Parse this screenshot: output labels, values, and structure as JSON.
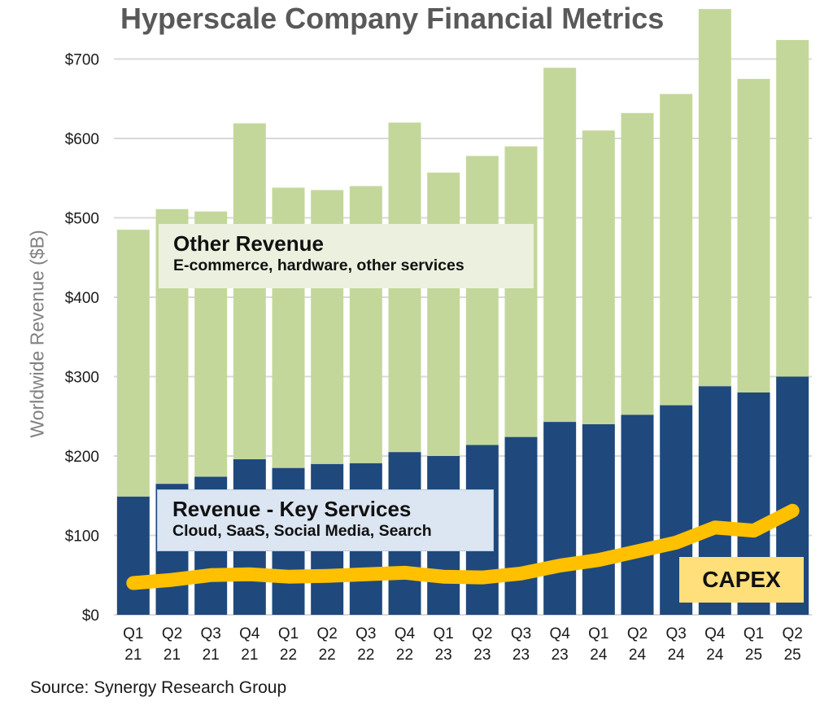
{
  "chart_data": {
    "type": "bar",
    "stacked": true,
    "title": "Hyperscale Company Financial Metrics",
    "xlabel": "",
    "ylabel": "Worldwide Revenue ($B)",
    "ylim": [
      0,
      700
    ],
    "yticks": [
      "$0",
      "$100",
      "$200",
      "$300",
      "$400",
      "$500",
      "$600",
      "$700"
    ],
    "ytick_values": [
      0,
      100,
      200,
      300,
      400,
      500,
      600,
      700
    ],
    "grid": true,
    "categories": [
      [
        "Q1",
        "21"
      ],
      [
        "Q2",
        "21"
      ],
      [
        "Q3",
        "21"
      ],
      [
        "Q4",
        "21"
      ],
      [
        "Q1",
        "22"
      ],
      [
        "Q2",
        "22"
      ],
      [
        "Q3",
        "22"
      ],
      [
        "Q4",
        "22"
      ],
      [
        "Q1",
        "23"
      ],
      [
        "Q2",
        "23"
      ],
      [
        "Q3",
        "23"
      ],
      [
        "Q4",
        "23"
      ],
      [
        "Q1",
        "24"
      ],
      [
        "Q2",
        "24"
      ],
      [
        "Q3",
        "24"
      ],
      [
        "Q4",
        "24"
      ],
      [
        "Q1",
        "25"
      ],
      [
        "Q2",
        "25"
      ]
    ],
    "series": [
      {
        "name": "Revenue - Key Services",
        "kind": "bar",
        "color": "#1F497D",
        "values": [
          149,
          165,
          174,
          196,
          185,
          190,
          191,
          205,
          200,
          214,
          224,
          243,
          240,
          252,
          264,
          288,
          280,
          300
        ]
      },
      {
        "name": "Other Revenue",
        "kind": "bar",
        "color": "#C4D79B",
        "values": [
          336,
          346,
          334,
          423,
          353,
          345,
          349,
          415,
          357,
          364,
          366,
          446,
          370,
          380,
          392,
          475,
          395,
          424
        ]
      },
      {
        "name": "CAPEX",
        "kind": "line",
        "color": "#FFC000",
        "values": [
          40,
          44,
          50,
          51,
          48,
          49,
          51,
          53,
          48,
          47,
          52,
          62,
          69,
          80,
          91,
          110,
          106,
          131
        ]
      }
    ],
    "totals": [
      485,
      511,
      508,
      619,
      538,
      535,
      540,
      620,
      557,
      578,
      590,
      689,
      610,
      632,
      656,
      763,
      675,
      724
    ],
    "annotations": {
      "other": {
        "title": "Other Revenue",
        "subtitle": "E-commerce, hardware, other services"
      },
      "key": {
        "title": "Revenue - Key Services",
        "subtitle": "Cloud, SaaS, Social Media, Search"
      },
      "capex": "CAPEX"
    },
    "source": "Source: Synergy Research Group"
  }
}
